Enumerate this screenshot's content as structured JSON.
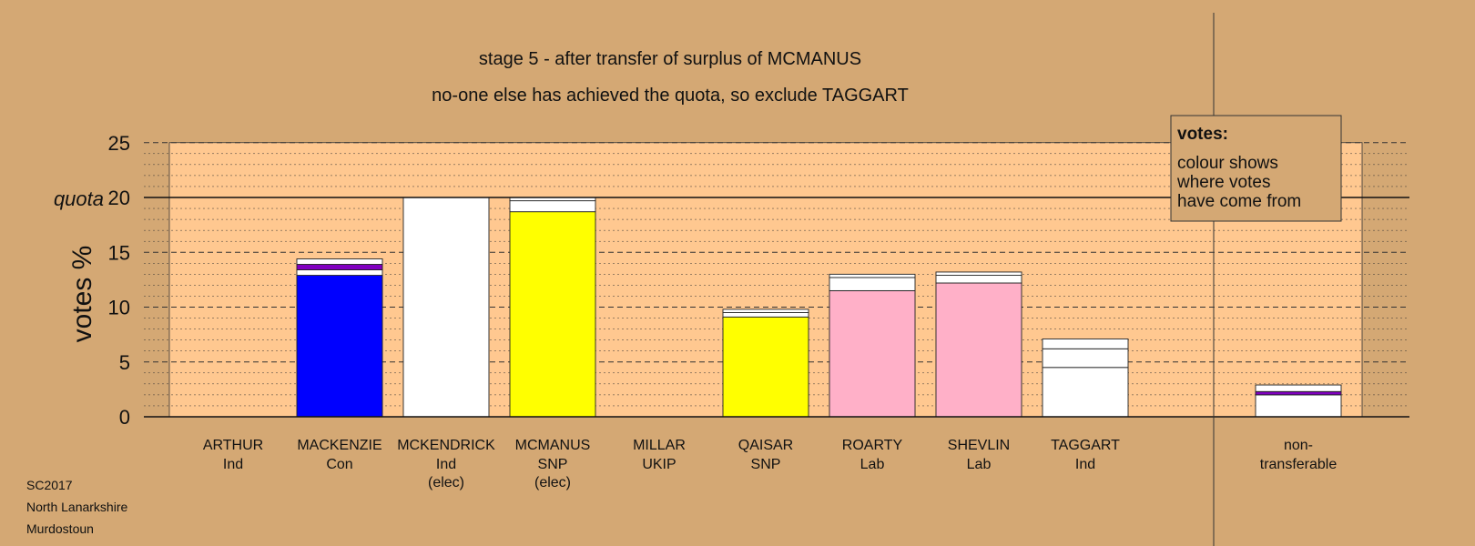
{
  "chart_data": {
    "type": "bar",
    "title": "stage 5 - after transfer of surplus of MCMANUS",
    "subtitle": "no-one else has achieved the quota, so exclude TAGGART",
    "ylabel": "votes %",
    "ylim": [
      0,
      25
    ],
    "yticks": [
      "0",
      "5",
      "10",
      "15",
      "20",
      "25"
    ],
    "quota": {
      "label": "quota",
      "value": 20
    },
    "grid": true,
    "legend": {
      "placement": "top-right",
      "title": "votes:",
      "lines": [
        "colour shows",
        "where votes",
        "have come from"
      ]
    },
    "candidates": [
      {
        "name": "ARTHUR",
        "party": "Ind",
        "note": "",
        "segments": []
      },
      {
        "name": "MACKENZIE",
        "party": "Con",
        "note": "",
        "segments": [
          {
            "value": 12.9,
            "color": "#0000ff"
          },
          {
            "value": 0.5,
            "color": "#ffffff"
          },
          {
            "value": 0.5,
            "color": "#8000c0"
          },
          {
            "value": 0.5,
            "color": "#ffffff"
          }
        ]
      },
      {
        "name": "MCKENDRICK",
        "party": "Ind",
        "note": "(elec)",
        "segments": [
          {
            "value": 20.0,
            "color": "#ffffff"
          }
        ]
      },
      {
        "name": "MCMANUS",
        "party": "SNP",
        "note": "(elec)",
        "segments": [
          {
            "value": 18.7,
            "color": "#ffff00"
          },
          {
            "value": 1.0,
            "color": "#ffffff"
          },
          {
            "value": 0.3,
            "color": "#ffffff"
          }
        ]
      },
      {
        "name": "MILLAR",
        "party": "UKIP",
        "note": "",
        "segments": []
      },
      {
        "name": "QAISAR",
        "party": "SNP",
        "note": "",
        "segments": [
          {
            "value": 9.1,
            "color": "#ffff00"
          },
          {
            "value": 0.4,
            "color": "#ffffff"
          },
          {
            "value": 0.3,
            "color": "#ffffff"
          }
        ]
      },
      {
        "name": "ROARTY",
        "party": "Lab",
        "note": "",
        "segments": [
          {
            "value": 11.5,
            "color": "#ffb0c8"
          },
          {
            "value": 1.2,
            "color": "#ffffff"
          },
          {
            "value": 0.3,
            "color": "#ffffff"
          }
        ]
      },
      {
        "name": "SHEVLIN",
        "party": "Lab",
        "note": "",
        "segments": [
          {
            "value": 12.2,
            "color": "#ffb0c8"
          },
          {
            "value": 0.7,
            "color": "#ffffff"
          },
          {
            "value": 0.3,
            "color": "#ffffff"
          }
        ]
      },
      {
        "name": "TAGGART",
        "party": "Ind",
        "note": "",
        "segments": [
          {
            "value": 4.5,
            "color": "#ffffff"
          },
          {
            "value": 1.7,
            "color": "#ffffff"
          },
          {
            "value": 0.9,
            "color": "#ffffff"
          }
        ]
      },
      {
        "name": "non-",
        "party": "transferable",
        "note": "",
        "segments": [
          {
            "value": 2.0,
            "color": "#ffffff"
          },
          {
            "value": 0.3,
            "color": "#8000c0"
          },
          {
            "value": 0.6,
            "color": "#ffffff"
          }
        ]
      }
    ],
    "colors": {
      "background": "#d4a874",
      "plot_area": "#ffc890",
      "white": "#ffffff"
    }
  },
  "footer": {
    "line1": "SC2017",
    "line2": "North Lanarkshire",
    "line3": "Murdostoun"
  }
}
